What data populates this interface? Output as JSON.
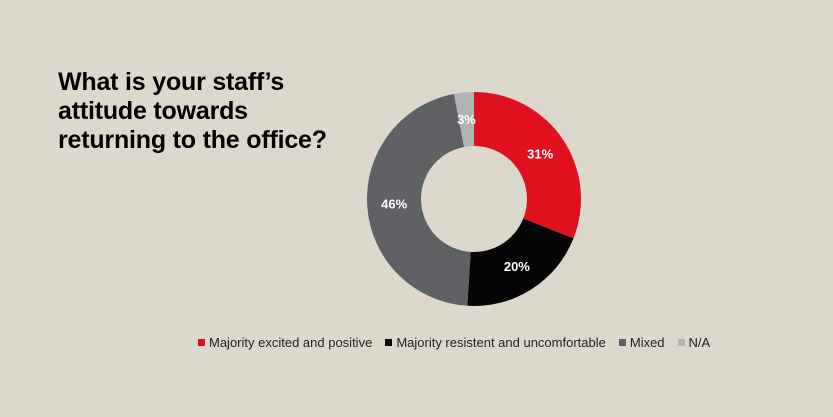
{
  "title_lines": [
    "What is your staff’s",
    "attitude towards",
    "returning to the office?"
  ],
  "chart_data": {
    "type": "pie",
    "donut": true,
    "categories": [
      "Majority excited and positive",
      "Majority resistent and uncomfortable",
      "Mixed",
      "N/A"
    ],
    "values": [
      31,
      20,
      46,
      3
    ],
    "labels": [
      "31%",
      "20%",
      "46%",
      "3%"
    ],
    "colors": [
      "#e0101e",
      "#050505",
      "#5f6164",
      "#b1b3b5"
    ],
    "legend": "bottom"
  }
}
